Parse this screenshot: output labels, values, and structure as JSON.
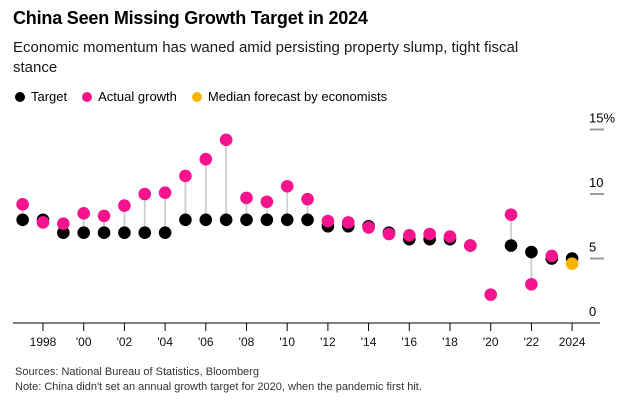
{
  "header": {
    "title": "China Seen Missing Growth Target in 2024",
    "subtitle_lines": [
      "Economic momentum has waned amid persisting property slump, tight fiscal",
      "stance"
    ]
  },
  "legend": {
    "items": [
      {
        "label": "Target",
        "color": "#000000"
      },
      {
        "label": "Actual growth",
        "color": "#f5148d"
      },
      {
        "label": "Median forecast by economists",
        "color": "#f8b500"
      }
    ]
  },
  "chart_data": {
    "type": "scatter",
    "title": "China Seen Missing Growth Target in 2024",
    "subtitle": "Economic momentum has waned amid persisting property slump, tight fiscal stance",
    "xlabel": "",
    "ylabel": "",
    "ylim": [
      0,
      15
    ],
    "grid": false,
    "legend_position": "top",
    "y_axis_side": "right",
    "unit": "%",
    "years": [
      1997,
      1998,
      1999,
      2000,
      2001,
      2002,
      2003,
      2004,
      2005,
      2006,
      2007,
      2008,
      2009,
      2010,
      2011,
      2012,
      2013,
      2014,
      2015,
      2016,
      2017,
      2018,
      2019,
      2020,
      2021,
      2022,
      2023,
      2024
    ],
    "series": [
      {
        "name": "Target",
        "color": "#000000",
        "values": [
          8,
          8,
          7,
          7,
          7,
          7,
          7,
          7,
          8,
          8,
          8,
          8,
          8,
          8,
          8,
          7.5,
          7.5,
          7.5,
          7,
          6.5,
          6.5,
          6.5,
          6,
          null,
          6,
          5.5,
          5,
          5
        ]
      },
      {
        "name": "Actual growth",
        "color": "#f5148d",
        "values": [
          9.2,
          7.8,
          7.7,
          8.5,
          8.3,
          9.1,
          10,
          10.1,
          11.4,
          12.7,
          14.2,
          9.7,
          9.4,
          10.6,
          9.6,
          7.9,
          7.8,
          7.4,
          6.9,
          6.8,
          6.9,
          6.7,
          6,
          2.2,
          8.4,
          3,
          5.2,
          null
        ]
      },
      {
        "name": "Median forecast by economists",
        "color": "#f8b500",
        "values": [
          null,
          null,
          null,
          null,
          null,
          null,
          null,
          null,
          null,
          null,
          null,
          null,
          null,
          null,
          null,
          null,
          null,
          null,
          null,
          null,
          null,
          null,
          null,
          null,
          null,
          null,
          null,
          4.6
        ]
      }
    ],
    "connector_color": "#cfcfcf",
    "x_ticks": [
      {
        "year": 1998,
        "label": "1998"
      },
      {
        "year": 2000,
        "label": "'00"
      },
      {
        "year": 2002,
        "label": "'02"
      },
      {
        "year": 2004,
        "label": "'04"
      },
      {
        "year": 2006,
        "label": "'06"
      },
      {
        "year": 2008,
        "label": "'08"
      },
      {
        "year": 2010,
        "label": "'10"
      },
      {
        "year": 2012,
        "label": "'12"
      },
      {
        "year": 2014,
        "label": "'14"
      },
      {
        "year": 2016,
        "label": "'16"
      },
      {
        "year": 2018,
        "label": "'18"
      },
      {
        "year": 2020,
        "label": "'20"
      },
      {
        "year": 2022,
        "label": "'22"
      },
      {
        "year": 2024,
        "label": "2024"
      }
    ],
    "y_ticks": [
      {
        "value": 15,
        "label": "15%"
      },
      {
        "value": 10,
        "label": "10"
      },
      {
        "value": 5,
        "label": "5"
      },
      {
        "value": 0,
        "label": "0"
      }
    ]
  },
  "footer": {
    "sources": "Sources: National Bureau of Statistics, Bloomberg",
    "note": "Note: China didn't set an annual growth target for 2020, when the pandemic first hit."
  }
}
